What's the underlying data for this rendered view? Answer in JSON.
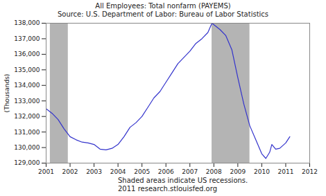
{
  "chart_data": {
    "type": "line",
    "title": "All Employees: Total nonfarm (PAYEMS)",
    "subtitle": "Source: U.S. Department of Labor: Bureau of Labor Statistics",
    "y_label": "(Thousands)",
    "caption": [
      "Shaded areas indicate US recessions.",
      "2011 research.stlouisfed.org"
    ],
    "x": [
      2001.0,
      2001.25,
      2001.5,
      2001.75,
      2002.0,
      2002.25,
      2002.5,
      2002.75,
      2003.0,
      2003.25,
      2003.5,
      2003.75,
      2004.0,
      2004.25,
      2004.5,
      2004.75,
      2005.0,
      2005.25,
      2005.5,
      2005.75,
      2006.0,
      2006.25,
      2006.5,
      2006.75,
      2007.0,
      2007.25,
      2007.5,
      2007.75,
      2007.92,
      2008.25,
      2008.5,
      2008.75,
      2009.0,
      2009.25,
      2009.5,
      2009.75,
      2010.0,
      2010.17,
      2010.33,
      2010.42,
      2010.58,
      2010.75,
      2011.0,
      2011.17
    ],
    "series": [
      {
        "name": "PAYEMS",
        "color": "#3333cc",
        "values": [
          132500,
          132200,
          131800,
          131200,
          130700,
          130500,
          130350,
          130300,
          130200,
          129900,
          129850,
          129950,
          130200,
          130700,
          131300,
          131600,
          132000,
          132600,
          133200,
          133600,
          134200,
          134800,
          135400,
          135800,
          136200,
          136700,
          137000,
          137400,
          138000,
          137600,
          137200,
          136300,
          134500,
          132800,
          131400,
          130500,
          129600,
          129300,
          129700,
          130200,
          129900,
          129950,
          130300,
          130700
        ]
      }
    ],
    "recessions": [
      {
        "start": 2001.17,
        "end": 2001.92
      },
      {
        "start": 2007.92,
        "end": 2009.5
      }
    ],
    "recession_color": "#b4b4b4",
    "xlim": [
      2001,
      2012
    ],
    "xticks": [
      2001,
      2002,
      2003,
      2004,
      2005,
      2006,
      2007,
      2008,
      2009,
      2010,
      2011,
      2012
    ],
    "ylim": [
      129000,
      138000
    ],
    "yticks": [
      {
        "value": 129000,
        "label": "129,000"
      },
      {
        "value": 130000,
        "label": "130,000"
      },
      {
        "value": 131000,
        "label": "131,000"
      },
      {
        "value": 132000,
        "label": "132,000"
      },
      {
        "value": 133000,
        "label": "133,000"
      },
      {
        "value": 134000,
        "label": "134,000"
      },
      {
        "value": 135000,
        "label": "135,000"
      },
      {
        "value": 136000,
        "label": "136,000"
      },
      {
        "value": 137000,
        "label": "137,000"
      },
      {
        "value": 138000,
        "label": "138,000"
      }
    ],
    "grid": false
  }
}
